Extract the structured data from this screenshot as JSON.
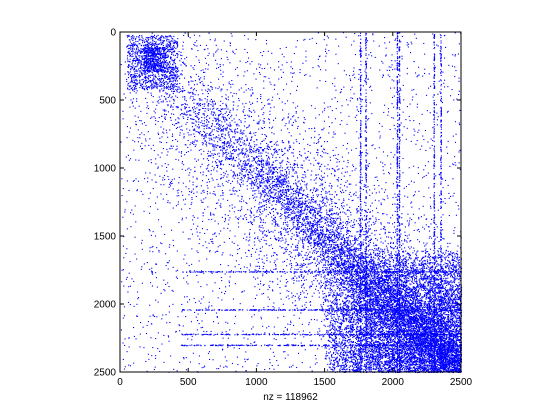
{
  "chart_data": {
    "type": "scatter",
    "title": "",
    "xlabel": "nz = 118962",
    "ylabel": "",
    "xlim": [
      0,
      2500
    ],
    "ylim": [
      2500,
      0
    ],
    "y_axis_reversed": true,
    "xticks": [
      0,
      500,
      1000,
      1500,
      2000,
      2500
    ],
    "yticks": [
      0,
      500,
      1000,
      1500,
      2000,
      2500
    ],
    "xtick_labels": [
      "0",
      "500",
      "1000",
      "1500",
      "2000",
      "2500"
    ],
    "ytick_labels": [
      "0",
      "500",
      "1000",
      "1500",
      "2000",
      "2500"
    ],
    "grid": false,
    "marker_color": "#0000ff",
    "axis_color": "#000000",
    "background": "#ffffff",
    "series": [
      {
        "values_description_free": true,
        "features": {
          "diagonal_band": {
            "from": [
              0,
              0
            ],
            "to": [
              2500,
              2500
            ]
          },
          "vertical_lines_x": [
            1760,
            1800,
            2030,
            2045,
            2300,
            2350
          ],
          "horizontal_lines_y": [
            1760,
            2040,
            2220,
            2300
          ],
          "dense_block_x": [
            50,
            420
          ],
          "dense_block_y": [
            20,
            420
          ],
          "dense_region_x": [
            1500,
            2500
          ],
          "dense_region_y": [
            1600,
            2500
          ]
        }
      }
    ]
  }
}
